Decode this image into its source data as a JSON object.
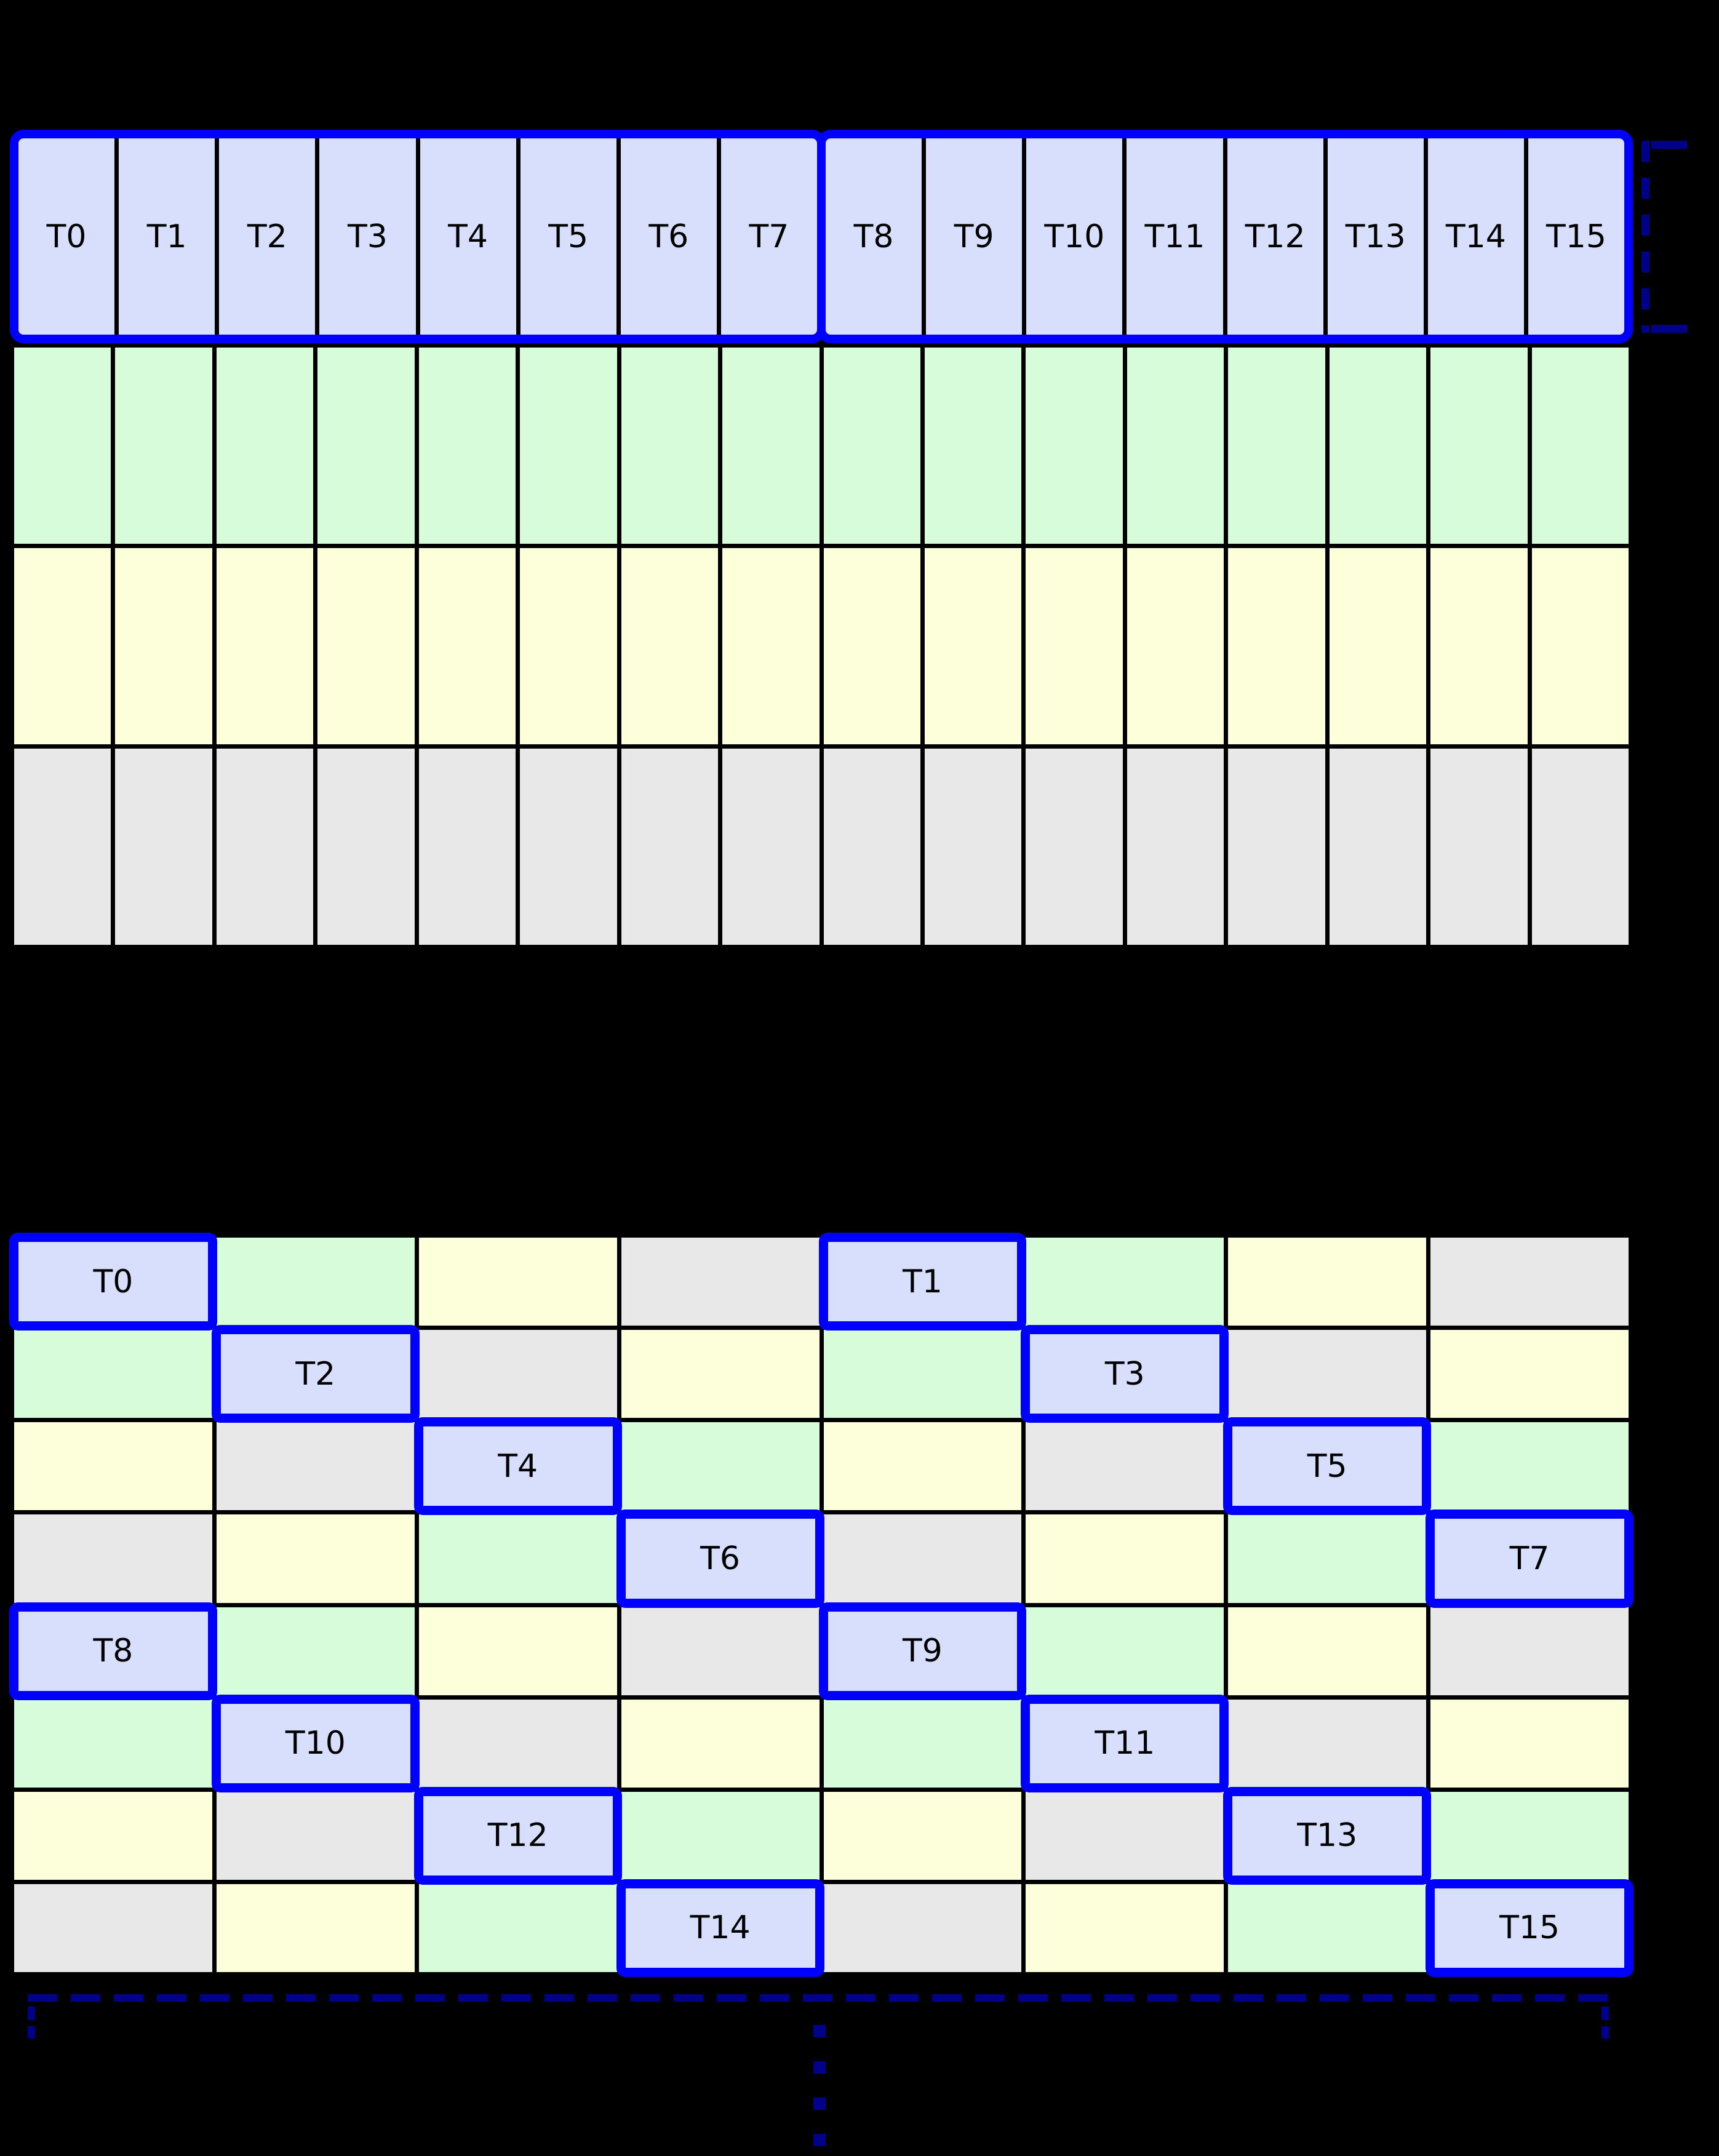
{
  "palette": {
    "background": "#000000",
    "thread_fill": "#d7dffc",
    "bank_green": "#d6fcd9",
    "bank_yellow": "#fdfeda",
    "bank_gray": "#e8e8e8",
    "warp_border_blue": "#0000ff",
    "annotation_navy": "#00008b",
    "grid_line_black": "#000000",
    "label_text": "#000000"
  },
  "top_grid": {
    "thread_row": {
      "groups": [
        {
          "threads": [
            "T0",
            "T1",
            "T2",
            "T3",
            "T4",
            "T5",
            "T6",
            "T7"
          ]
        },
        {
          "threads": [
            "T8",
            "T9",
            "T10",
            "T11",
            "T12",
            "T13",
            "T14",
            "T15"
          ]
        }
      ]
    },
    "memory_rows": [
      {
        "color": "green",
        "cells": 16
      },
      {
        "color": "yellow",
        "cells": 16
      },
      {
        "color": "gray",
        "cells": 16
      }
    ]
  },
  "bottom_grid": {
    "rows": [
      {
        "cells": [
          {
            "color": "blue",
            "label": "T0"
          },
          {
            "color": "green"
          },
          {
            "color": "yellow"
          },
          {
            "color": "gray"
          },
          {
            "color": "blue",
            "label": "T1"
          },
          {
            "color": "green"
          },
          {
            "color": "yellow"
          },
          {
            "color": "gray"
          }
        ]
      },
      {
        "cells": [
          {
            "color": "green"
          },
          {
            "color": "blue",
            "label": "T2"
          },
          {
            "color": "gray"
          },
          {
            "color": "yellow"
          },
          {
            "color": "green"
          },
          {
            "color": "blue",
            "label": "T3"
          },
          {
            "color": "gray"
          },
          {
            "color": "yellow"
          }
        ]
      },
      {
        "cells": [
          {
            "color": "yellow"
          },
          {
            "color": "gray"
          },
          {
            "color": "blue",
            "label": "T4"
          },
          {
            "color": "green"
          },
          {
            "color": "yellow"
          },
          {
            "color": "gray"
          },
          {
            "color": "blue",
            "label": "T5"
          },
          {
            "color": "green"
          }
        ]
      },
      {
        "cells": [
          {
            "color": "gray"
          },
          {
            "color": "yellow"
          },
          {
            "color": "green"
          },
          {
            "color": "blue",
            "label": "T6"
          },
          {
            "color": "gray"
          },
          {
            "color": "yellow"
          },
          {
            "color": "green"
          },
          {
            "color": "blue",
            "label": "T7"
          }
        ]
      },
      {
        "cells": [
          {
            "color": "blue",
            "label": "T8"
          },
          {
            "color": "green"
          },
          {
            "color": "yellow"
          },
          {
            "color": "gray"
          },
          {
            "color": "blue",
            "label": "T9"
          },
          {
            "color": "green"
          },
          {
            "color": "yellow"
          },
          {
            "color": "gray"
          }
        ]
      },
      {
        "cells": [
          {
            "color": "green"
          },
          {
            "color": "blue",
            "label": "T10"
          },
          {
            "color": "gray"
          },
          {
            "color": "yellow"
          },
          {
            "color": "green"
          },
          {
            "color": "blue",
            "label": "T11"
          },
          {
            "color": "gray"
          },
          {
            "color": "yellow"
          }
        ]
      },
      {
        "cells": [
          {
            "color": "yellow"
          },
          {
            "color": "gray"
          },
          {
            "color": "blue",
            "label": "T12"
          },
          {
            "color": "green"
          },
          {
            "color": "yellow"
          },
          {
            "color": "gray"
          },
          {
            "color": "blue",
            "label": "T13"
          },
          {
            "color": "green"
          }
        ]
      },
      {
        "cells": [
          {
            "color": "gray"
          },
          {
            "color": "yellow"
          },
          {
            "color": "green"
          },
          {
            "color": "blue",
            "label": "T14"
          },
          {
            "color": "gray"
          },
          {
            "color": "yellow"
          },
          {
            "color": "green"
          },
          {
            "color": "blue",
            "label": "T15"
          }
        ]
      }
    ]
  },
  "annotations": {
    "thread_row_bracket": {
      "style": "dashed",
      "color": "#00008b"
    },
    "bottom_span_bracket": {
      "style": "dashed",
      "color": "#00008b"
    },
    "continuation_ellipsis": {
      "style": "dotted",
      "color": "#00008b"
    }
  }
}
